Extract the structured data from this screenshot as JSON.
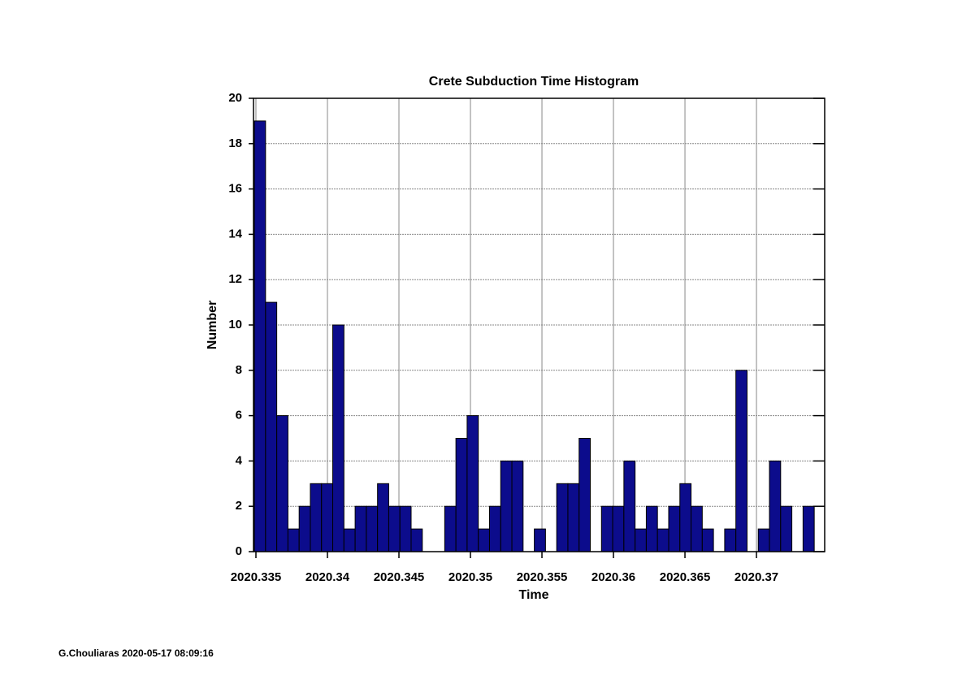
{
  "chart_data": {
    "type": "histogram",
    "title": "Crete Subduction Time Histogram",
    "xlabel": "Time",
    "ylabel": "Number",
    "footer": "G.Chouliaras 2020-05-17 08:09:16",
    "color": "#0c0c8c",
    "grid": true,
    "bins": [
      2020.33489,
      2020.335673,
      2020.336456,
      2020.337239,
      2020.338022,
      2020.338805,
      2020.339588,
      2020.340371,
      2020.341154,
      2020.341937,
      2020.34272,
      2020.343503,
      2020.344286,
      2020.345069,
      2020.345852,
      2020.346635,
      2020.347418,
      2020.348201,
      2020.348984,
      2020.349767,
      2020.35055,
      2020.351333,
      2020.352116,
      2020.352899,
      2020.353682,
      2020.354465,
      2020.355248,
      2020.356031,
      2020.356814,
      2020.357597,
      2020.35838,
      2020.359163,
      2020.359946,
      2020.360729,
      2020.361512,
      2020.362295,
      2020.363078,
      2020.363861,
      2020.364644,
      2020.365427,
      2020.36621,
      2020.366993,
      2020.367776,
      2020.368559,
      2020.369342,
      2020.370125,
      2020.370908,
      2020.371691,
      2020.372474,
      2020.373257,
      2020.37404
    ],
    "values": [
      19,
      11,
      6,
      1,
      2,
      3,
      3,
      10,
      1,
      2,
      2,
      3,
      2,
      2,
      1,
      0,
      0,
      2,
      5,
      6,
      1,
      2,
      4,
      4,
      0,
      1,
      0,
      3,
      3,
      5,
      0,
      2,
      2,
      4,
      1,
      2,
      1,
      2,
      3,
      2,
      1,
      0,
      1,
      8,
      0,
      1,
      4,
      2,
      0,
      2
    ],
    "xlim": [
      2020.33483,
      2020.37477
    ],
    "xticks": [
      2020.335,
      2020.34,
      2020.345,
      2020.35,
      2020.355,
      2020.36,
      2020.365,
      2020.37
    ],
    "ylim": [
      0,
      20
    ],
    "yticks": [
      0,
      2,
      4,
      6,
      8,
      10,
      12,
      14,
      16,
      18,
      20
    ]
  }
}
